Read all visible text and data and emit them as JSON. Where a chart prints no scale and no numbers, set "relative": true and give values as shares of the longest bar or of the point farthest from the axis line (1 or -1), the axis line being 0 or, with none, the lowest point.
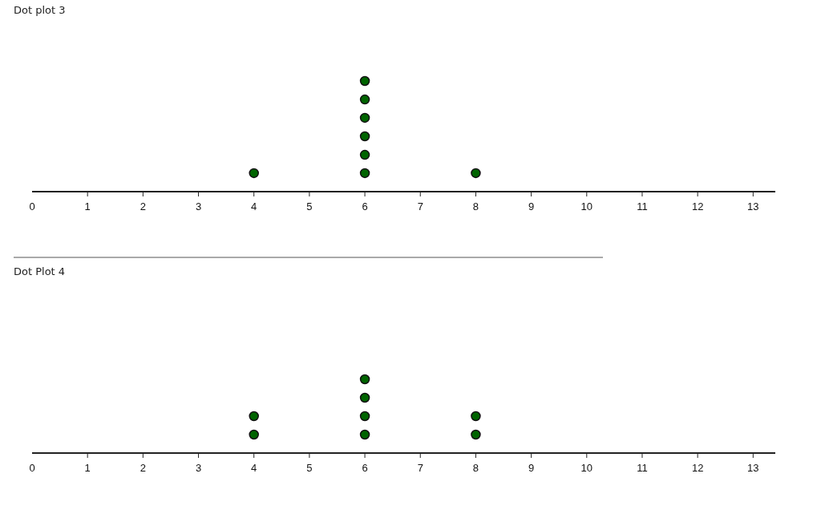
{
  "chart_data": [
    {
      "type": "scatter",
      "title": "Dot plot 3",
      "relative": true,
      "marker": "circle",
      "xlim": [
        0,
        13.4
      ],
      "xticks": [
        0,
        1,
        2,
        3,
        4,
        5,
        6,
        7,
        8,
        9,
        10,
        11,
        12,
        13
      ],
      "series": [
        {
          "color": "#006400",
          "x": [
            4,
            6,
            6,
            6,
            6,
            6,
            6,
            8
          ],
          "values": [
            0.167,
            0.167,
            0.333,
            0.5,
            0.667,
            0.833,
            1,
            0.167
          ]
        }
      ]
    },
    {
      "type": "scatter",
      "title": "Dot Plot 4",
      "relative": true,
      "marker": "circle",
      "xlim": [
        0,
        13.4
      ],
      "xticks": [
        0,
        1,
        2,
        3,
        4,
        5,
        6,
        7,
        8,
        9,
        10,
        11,
        12,
        13
      ],
      "series": [
        {
          "color": "#006400",
          "x": [
            4,
            4,
            6,
            6,
            6,
            6,
            8,
            8
          ],
          "values": [
            0.25,
            0.5,
            0.25,
            0.5,
            0.75,
            1,
            0.25,
            0.5
          ]
        }
      ]
    }
  ]
}
